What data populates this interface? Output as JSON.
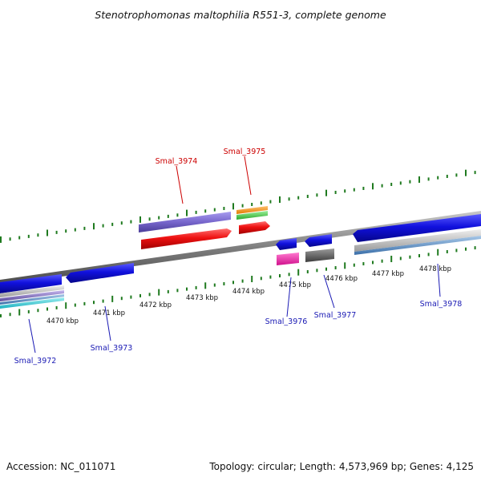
{
  "title": "Stenotrophomonas maltophilia R551-3, complete genome",
  "footer": {
    "accession": "Accession: NC_011071",
    "summary": "Topology: circular; Length: 4,573,969 bp; Genes: 4,125"
  },
  "colors": {
    "forward_label": "#cc0000",
    "reverse_label": "#1a1ab4",
    "tick_marks": "#1f7a1f",
    "backbone": "#8c8c8c",
    "cds_forward": "#ee1111",
    "cds_reverse": "#1111dd",
    "gene_forward": "#7766cc"
  },
  "kbp_ticks": [
    "4470 kbp",
    "4471 kbp",
    "4472 kbp",
    "4473 kbp",
    "4474 kbp",
    "4475 kbp",
    "4476 kbp",
    "4477 kbp",
    "4478 kbp"
  ],
  "genes_forward": [
    "Smal_3974",
    "Smal_3975"
  ],
  "genes_reverse": [
    "Smal_3972",
    "Smal_3973",
    "Smal_3976",
    "Smal_3977",
    "Smal_3978"
  ]
}
